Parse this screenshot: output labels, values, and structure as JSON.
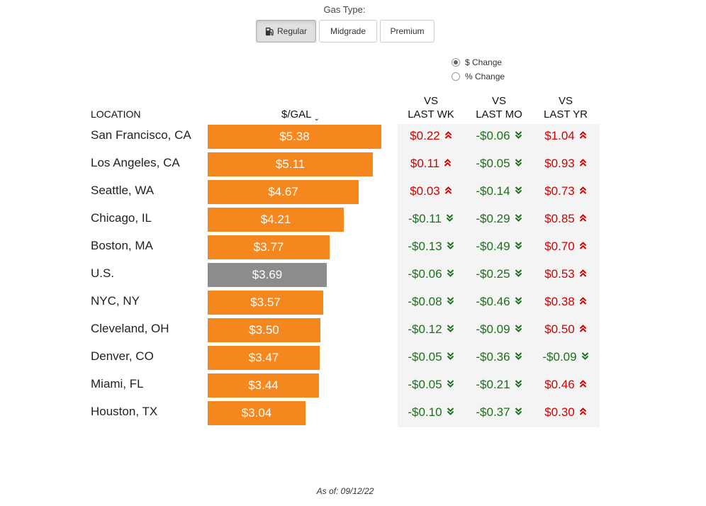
{
  "controls": {
    "gas_type_label": "Gas Type:",
    "buttons": [
      {
        "label": "Regular",
        "active": true,
        "icon": "gas-pump-icon"
      },
      {
        "label": "Midgrade",
        "active": false
      },
      {
        "label": "Premium",
        "active": false
      }
    ],
    "change_mode": [
      {
        "label": "$ Change",
        "checked": true
      },
      {
        "label": "% Change",
        "checked": false
      }
    ]
  },
  "footer": {
    "as_of": "As of: 09/12/22"
  },
  "colors": {
    "bar": "#f5871f",
    "us_bar": "#8c8c8c",
    "increase": "#d20000",
    "decrease": "#1e6e1e",
    "panel": "#f4f4f4"
  },
  "chart_data": {
    "type": "table",
    "columns": [
      "LOCATION",
      "$/GAL",
      "VS LAST WK",
      "VS LAST MO",
      "VS LAST YR"
    ],
    "column_headers": {
      "location": "LOCATION",
      "price": "$/GAL",
      "last_wk": [
        "VS",
        "LAST WK"
      ],
      "last_mo": [
        "VS",
        "LAST MO"
      ],
      "last_yr": [
        "VS",
        "LAST YR"
      ]
    },
    "sort": {
      "column": "$/GAL",
      "order": "descending"
    },
    "rows": [
      {
        "location": "San Francisco, CA",
        "price": 5.38,
        "price_label": "$5.38",
        "wk": "$0.22",
        "wk_dir": "up",
        "mo": "-$0.06",
        "mo_dir": "down",
        "yr": "$1.04",
        "yr_dir": "up"
      },
      {
        "location": "Los Angeles, CA",
        "price": 5.11,
        "price_label": "$5.11",
        "wk": "$0.11",
        "wk_dir": "up",
        "mo": "-$0.05",
        "mo_dir": "down",
        "yr": "$0.93",
        "yr_dir": "up"
      },
      {
        "location": "Seattle, WA",
        "price": 4.67,
        "price_label": "$4.67",
        "wk": "$0.03",
        "wk_dir": "up",
        "mo": "-$0.14",
        "mo_dir": "down",
        "yr": "$0.73",
        "yr_dir": "up"
      },
      {
        "location": "Chicago, IL",
        "price": 4.21,
        "price_label": "$4.21",
        "wk": "-$0.11",
        "wk_dir": "down",
        "mo": "-$0.29",
        "mo_dir": "down",
        "yr": "$0.85",
        "yr_dir": "up"
      },
      {
        "location": "Boston, MA",
        "price": 3.77,
        "price_label": "$3.77",
        "wk": "-$0.13",
        "wk_dir": "down",
        "mo": "-$0.49",
        "mo_dir": "down",
        "yr": "$0.70",
        "yr_dir": "up"
      },
      {
        "location": "U.S.",
        "price": 3.69,
        "price_label": "$3.69",
        "wk": "-$0.06",
        "wk_dir": "down",
        "mo": "-$0.25",
        "mo_dir": "down",
        "yr": "$0.53",
        "yr_dir": "up",
        "highlight": true
      },
      {
        "location": "NYC, NY",
        "price": 3.57,
        "price_label": "$3.57",
        "wk": "-$0.08",
        "wk_dir": "down",
        "mo": "-$0.46",
        "mo_dir": "down",
        "yr": "$0.38",
        "yr_dir": "up"
      },
      {
        "location": "Cleveland, OH",
        "price": 3.5,
        "price_label": "$3.50",
        "wk": "-$0.12",
        "wk_dir": "down",
        "mo": "-$0.09",
        "mo_dir": "down",
        "yr": "$0.50",
        "yr_dir": "up"
      },
      {
        "location": "Denver, CO",
        "price": 3.47,
        "price_label": "$3.47",
        "wk": "-$0.05",
        "wk_dir": "down",
        "mo": "-$0.36",
        "mo_dir": "down",
        "yr": "-$0.09",
        "yr_dir": "down"
      },
      {
        "location": "Miami, FL",
        "price": 3.44,
        "price_label": "$3.44",
        "wk": "-$0.05",
        "wk_dir": "down",
        "mo": "-$0.21",
        "mo_dir": "down",
        "yr": "$0.46",
        "yr_dir": "up"
      },
      {
        "location": "Houston, TX",
        "price": 3.04,
        "price_label": "$3.04",
        "wk": "-$0.10",
        "wk_dir": "down",
        "mo": "-$0.37",
        "mo_dir": "down",
        "yr": "$0.30",
        "yr_dir": "up"
      }
    ]
  }
}
